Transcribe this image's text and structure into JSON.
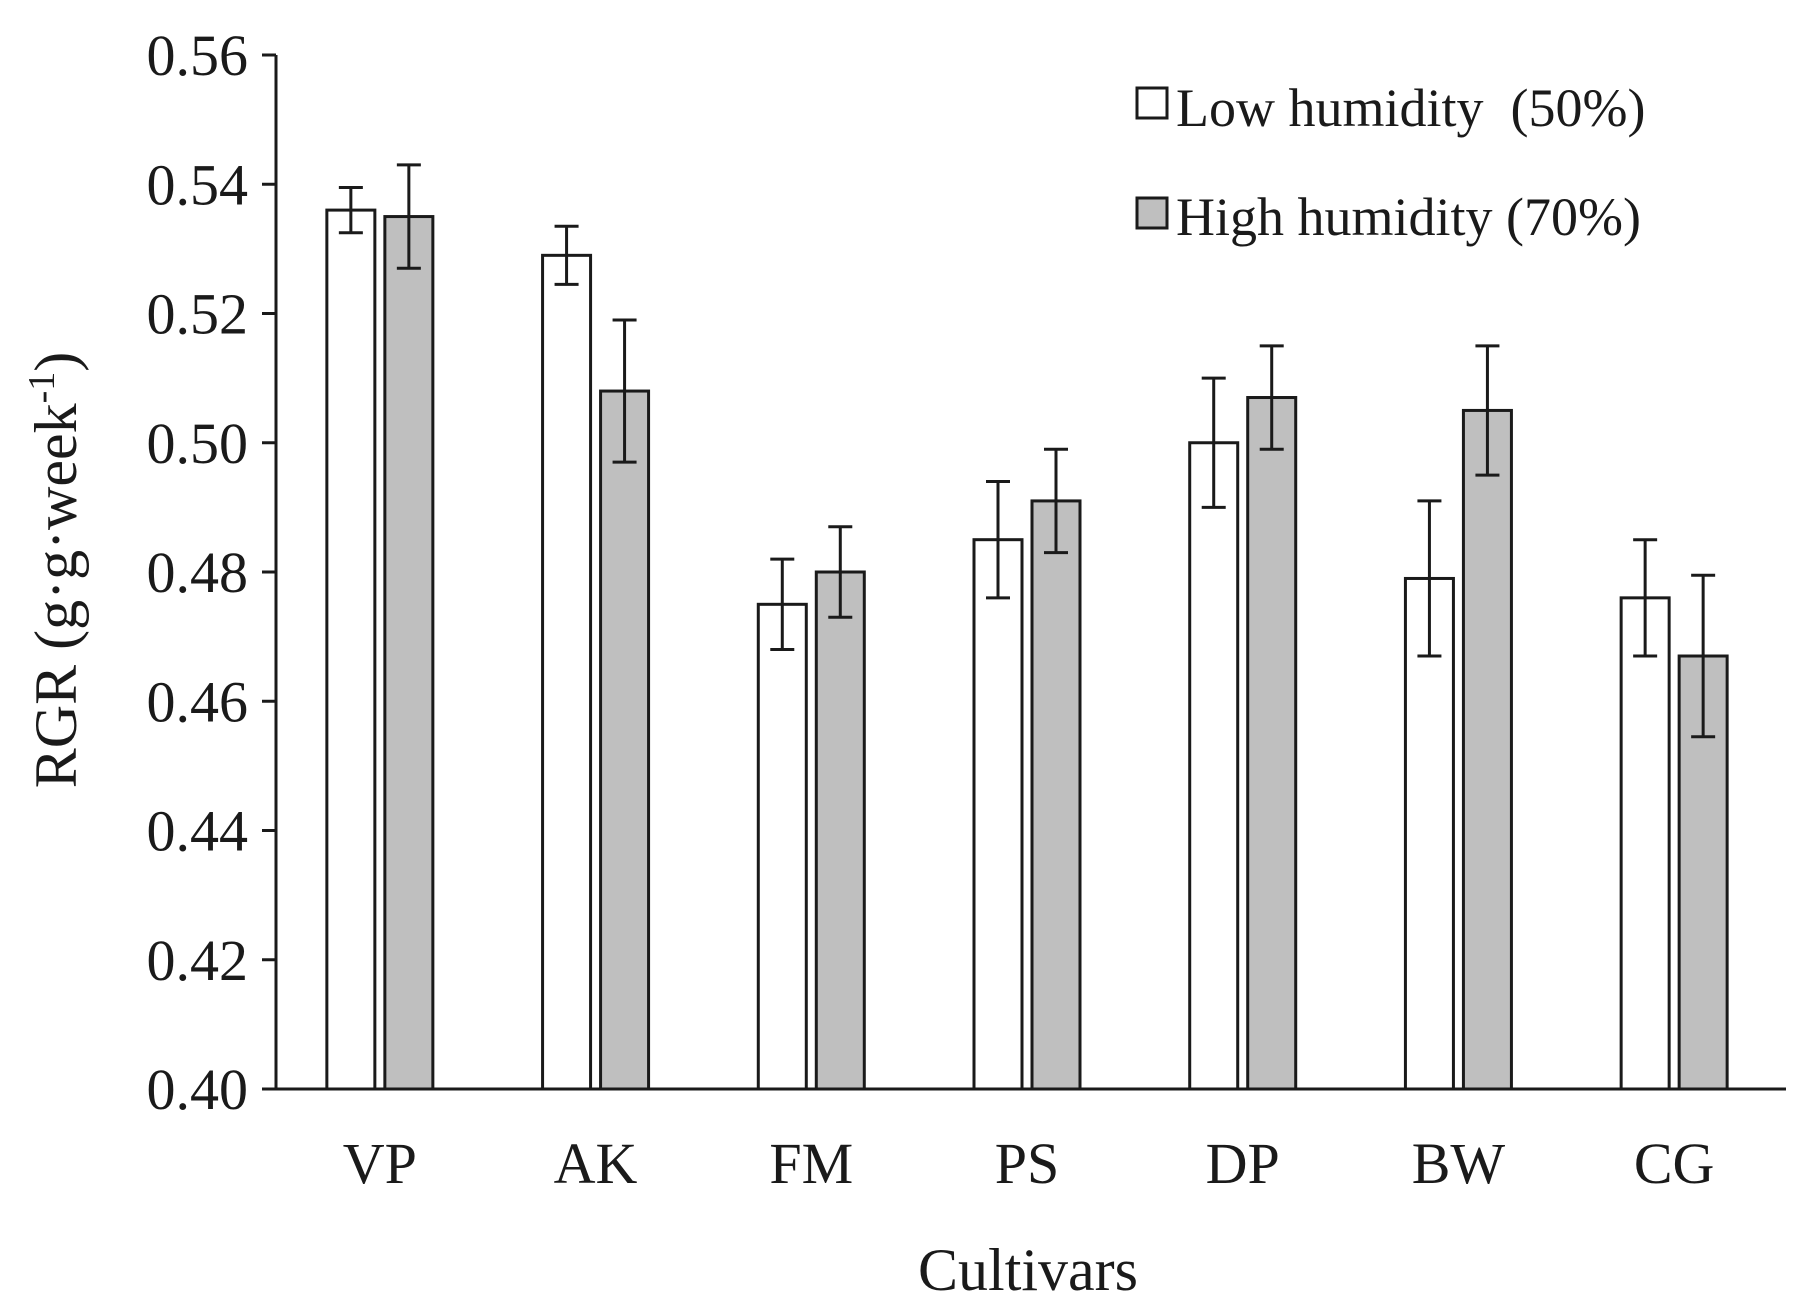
{
  "chart_data": {
    "type": "bar",
    "title": "",
    "xlabel": "Cultivars",
    "ylabel_prefix": "RGR (g·g·week",
    "ylabel_sup": "-1",
    "ylabel_suffix": ")",
    "ylim": [
      0.4,
      0.56
    ],
    "yticks": [
      "0.40",
      "0.42",
      "0.44",
      "0.46",
      "0.48",
      "0.50",
      "0.52",
      "0.54",
      "0.56"
    ],
    "categories": [
      "VP",
      "AK",
      "FM",
      "PS",
      "DP",
      "BW",
      "CG"
    ],
    "series": [
      {
        "name": "Low humidity  (50%)",
        "color": "#ffffff",
        "values": [
          0.536,
          0.529,
          0.475,
          0.485,
          0.5,
          0.479,
          0.476
        ],
        "errors": [
          0.0035,
          0.0045,
          0.007,
          0.009,
          0.01,
          0.012,
          0.009
        ]
      },
      {
        "name": "High humidity (70%)",
        "color": "#bfbfbf",
        "values": [
          0.535,
          0.508,
          0.48,
          0.491,
          0.507,
          0.505,
          0.467
        ],
        "errors": [
          0.008,
          0.011,
          0.007,
          0.008,
          0.008,
          0.01,
          0.0125
        ]
      }
    ],
    "grid": false,
    "legend_position": "top-right",
    "error_bars": true
  }
}
